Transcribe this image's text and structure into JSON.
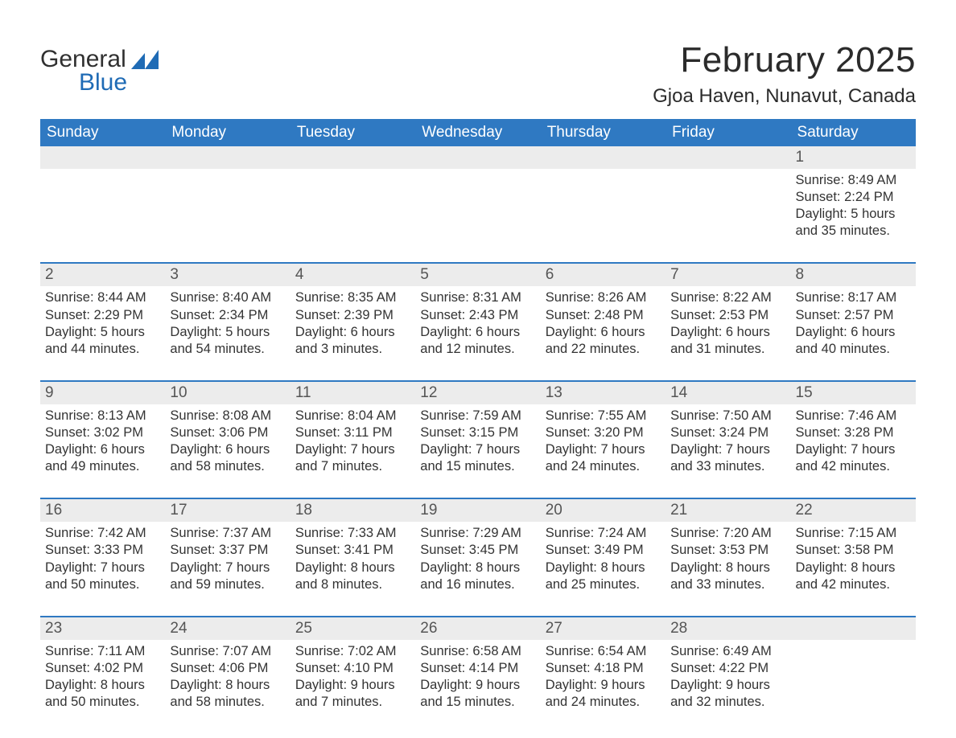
{
  "brand": {
    "word1": "General",
    "word2": "Blue",
    "word1_color": "#303030",
    "word2_color": "#1f6bb5",
    "glyph_color": "#1f6bb5"
  },
  "header": {
    "title": "February 2025",
    "subtitle": "Gjoa Haven, Nunavut, Canada"
  },
  "colors": {
    "header_bar": "#2f79c2",
    "header_text": "#ffffff",
    "day_number_bg": "#ececec",
    "day_number_text": "#555555",
    "rule": "#2f79c2",
    "body_text": "#333333",
    "page_bg": "#ffffff"
  },
  "weekdays": [
    "Sunday",
    "Monday",
    "Tuesday",
    "Wednesday",
    "Thursday",
    "Friday",
    "Saturday"
  ],
  "weeks": [
    [
      {
        "empty": true
      },
      {
        "empty": true
      },
      {
        "empty": true
      },
      {
        "empty": true
      },
      {
        "empty": true
      },
      {
        "empty": true
      },
      {
        "n": "1",
        "sunrise": "Sunrise: 8:49 AM",
        "sunset": "Sunset: 2:24 PM",
        "dl1": "Daylight: 5 hours",
        "dl2": "and 35 minutes."
      }
    ],
    [
      {
        "n": "2",
        "sunrise": "Sunrise: 8:44 AM",
        "sunset": "Sunset: 2:29 PM",
        "dl1": "Daylight: 5 hours",
        "dl2": "and 44 minutes."
      },
      {
        "n": "3",
        "sunrise": "Sunrise: 8:40 AM",
        "sunset": "Sunset: 2:34 PM",
        "dl1": "Daylight: 5 hours",
        "dl2": "and 54 minutes."
      },
      {
        "n": "4",
        "sunrise": "Sunrise: 8:35 AM",
        "sunset": "Sunset: 2:39 PM",
        "dl1": "Daylight: 6 hours",
        "dl2": "and 3 minutes."
      },
      {
        "n": "5",
        "sunrise": "Sunrise: 8:31 AM",
        "sunset": "Sunset: 2:43 PM",
        "dl1": "Daylight: 6 hours",
        "dl2": "and 12 minutes."
      },
      {
        "n": "6",
        "sunrise": "Sunrise: 8:26 AM",
        "sunset": "Sunset: 2:48 PM",
        "dl1": "Daylight: 6 hours",
        "dl2": "and 22 minutes."
      },
      {
        "n": "7",
        "sunrise": "Sunrise: 8:22 AM",
        "sunset": "Sunset: 2:53 PM",
        "dl1": "Daylight: 6 hours",
        "dl2": "and 31 minutes."
      },
      {
        "n": "8",
        "sunrise": "Sunrise: 8:17 AM",
        "sunset": "Sunset: 2:57 PM",
        "dl1": "Daylight: 6 hours",
        "dl2": "and 40 minutes."
      }
    ],
    [
      {
        "n": "9",
        "sunrise": "Sunrise: 8:13 AM",
        "sunset": "Sunset: 3:02 PM",
        "dl1": "Daylight: 6 hours",
        "dl2": "and 49 minutes."
      },
      {
        "n": "10",
        "sunrise": "Sunrise: 8:08 AM",
        "sunset": "Sunset: 3:06 PM",
        "dl1": "Daylight: 6 hours",
        "dl2": "and 58 minutes."
      },
      {
        "n": "11",
        "sunrise": "Sunrise: 8:04 AM",
        "sunset": "Sunset: 3:11 PM",
        "dl1": "Daylight: 7 hours",
        "dl2": "and 7 minutes."
      },
      {
        "n": "12",
        "sunrise": "Sunrise: 7:59 AM",
        "sunset": "Sunset: 3:15 PM",
        "dl1": "Daylight: 7 hours",
        "dl2": "and 15 minutes."
      },
      {
        "n": "13",
        "sunrise": "Sunrise: 7:55 AM",
        "sunset": "Sunset: 3:20 PM",
        "dl1": "Daylight: 7 hours",
        "dl2": "and 24 minutes."
      },
      {
        "n": "14",
        "sunrise": "Sunrise: 7:50 AM",
        "sunset": "Sunset: 3:24 PM",
        "dl1": "Daylight: 7 hours",
        "dl2": "and 33 minutes."
      },
      {
        "n": "15",
        "sunrise": "Sunrise: 7:46 AM",
        "sunset": "Sunset: 3:28 PM",
        "dl1": "Daylight: 7 hours",
        "dl2": "and 42 minutes."
      }
    ],
    [
      {
        "n": "16",
        "sunrise": "Sunrise: 7:42 AM",
        "sunset": "Sunset: 3:33 PM",
        "dl1": "Daylight: 7 hours",
        "dl2": "and 50 minutes."
      },
      {
        "n": "17",
        "sunrise": "Sunrise: 7:37 AM",
        "sunset": "Sunset: 3:37 PM",
        "dl1": "Daylight: 7 hours",
        "dl2": "and 59 minutes."
      },
      {
        "n": "18",
        "sunrise": "Sunrise: 7:33 AM",
        "sunset": "Sunset: 3:41 PM",
        "dl1": "Daylight: 8 hours",
        "dl2": "and 8 minutes."
      },
      {
        "n": "19",
        "sunrise": "Sunrise: 7:29 AM",
        "sunset": "Sunset: 3:45 PM",
        "dl1": "Daylight: 8 hours",
        "dl2": "and 16 minutes."
      },
      {
        "n": "20",
        "sunrise": "Sunrise: 7:24 AM",
        "sunset": "Sunset: 3:49 PM",
        "dl1": "Daylight: 8 hours",
        "dl2": "and 25 minutes."
      },
      {
        "n": "21",
        "sunrise": "Sunrise: 7:20 AM",
        "sunset": "Sunset: 3:53 PM",
        "dl1": "Daylight: 8 hours",
        "dl2": "and 33 minutes."
      },
      {
        "n": "22",
        "sunrise": "Sunrise: 7:15 AM",
        "sunset": "Sunset: 3:58 PM",
        "dl1": "Daylight: 8 hours",
        "dl2": "and 42 minutes."
      }
    ],
    [
      {
        "n": "23",
        "sunrise": "Sunrise: 7:11 AM",
        "sunset": "Sunset: 4:02 PM",
        "dl1": "Daylight: 8 hours",
        "dl2": "and 50 minutes."
      },
      {
        "n": "24",
        "sunrise": "Sunrise: 7:07 AM",
        "sunset": "Sunset: 4:06 PM",
        "dl1": "Daylight: 8 hours",
        "dl2": "and 58 minutes."
      },
      {
        "n": "25",
        "sunrise": "Sunrise: 7:02 AM",
        "sunset": "Sunset: 4:10 PM",
        "dl1": "Daylight: 9 hours",
        "dl2": "and 7 minutes."
      },
      {
        "n": "26",
        "sunrise": "Sunrise: 6:58 AM",
        "sunset": "Sunset: 4:14 PM",
        "dl1": "Daylight: 9 hours",
        "dl2": "and 15 minutes."
      },
      {
        "n": "27",
        "sunrise": "Sunrise: 6:54 AM",
        "sunset": "Sunset: 4:18 PM",
        "dl1": "Daylight: 9 hours",
        "dl2": "and 24 minutes."
      },
      {
        "n": "28",
        "sunrise": "Sunrise: 6:49 AM",
        "sunset": "Sunset: 4:22 PM",
        "dl1": "Daylight: 9 hours",
        "dl2": "and 32 minutes."
      },
      {
        "empty": true
      }
    ]
  ]
}
